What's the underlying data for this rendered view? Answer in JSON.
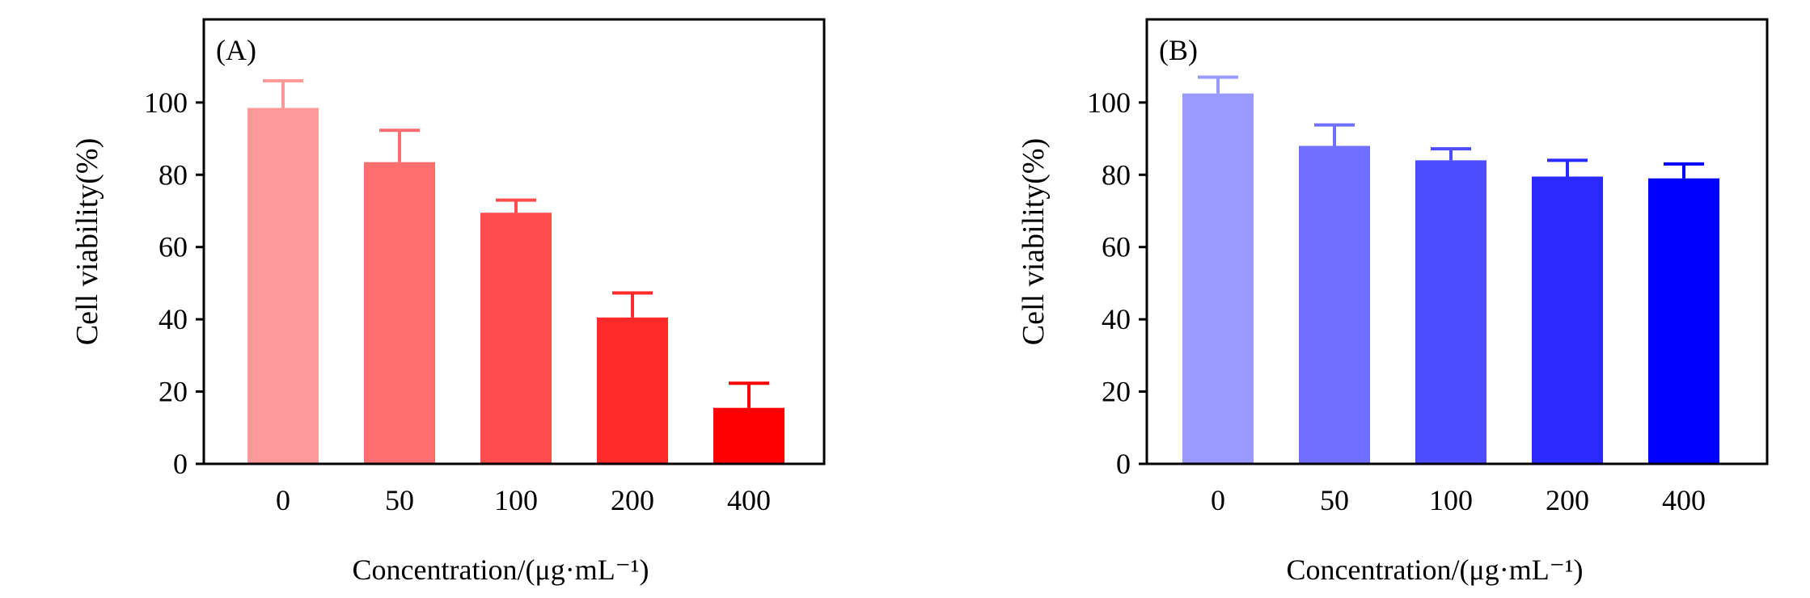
{
  "chart_data": [
    {
      "type": "bar",
      "panel_label": "(A)",
      "categories": [
        "0",
        "50",
        "100",
        "200",
        "400"
      ],
      "values": [
        98.5,
        83.5,
        69.5,
        40.5,
        15.5
      ],
      "error_plus": [
        7.5,
        8.8,
        3.5,
        6.8,
        6.8
      ],
      "colors": [
        "#ff9999",
        "#ff6e6e",
        "#ff4d4d",
        "#ff2a2a",
        "#ff0000"
      ],
      "xlabel": "Concentration/(μg·mL⁻¹)",
      "ylabel": "Cell viability(%)",
      "ylim": [
        0,
        123
      ],
      "yticks": [
        0,
        20,
        40,
        60,
        80,
        100
      ],
      "grid": false
    },
    {
      "type": "bar",
      "panel_label": "(B)",
      "categories": [
        "0",
        "50",
        "100",
        "200",
        "400"
      ],
      "values": [
        102.5,
        88,
        84,
        79.5,
        79
      ],
      "error_plus": [
        4.5,
        5.8,
        3.2,
        4.5,
        4.0
      ],
      "colors": [
        "#9999ff",
        "#7070ff",
        "#4d4dff",
        "#2a2aff",
        "#0000ff"
      ],
      "xlabel": "Concentration/(μg·mL⁻¹)",
      "ylabel": "Cell viability(%)",
      "ylim": [
        0,
        123
      ],
      "yticks": [
        0,
        20,
        40,
        60,
        80,
        100
      ],
      "grid": false
    }
  ]
}
